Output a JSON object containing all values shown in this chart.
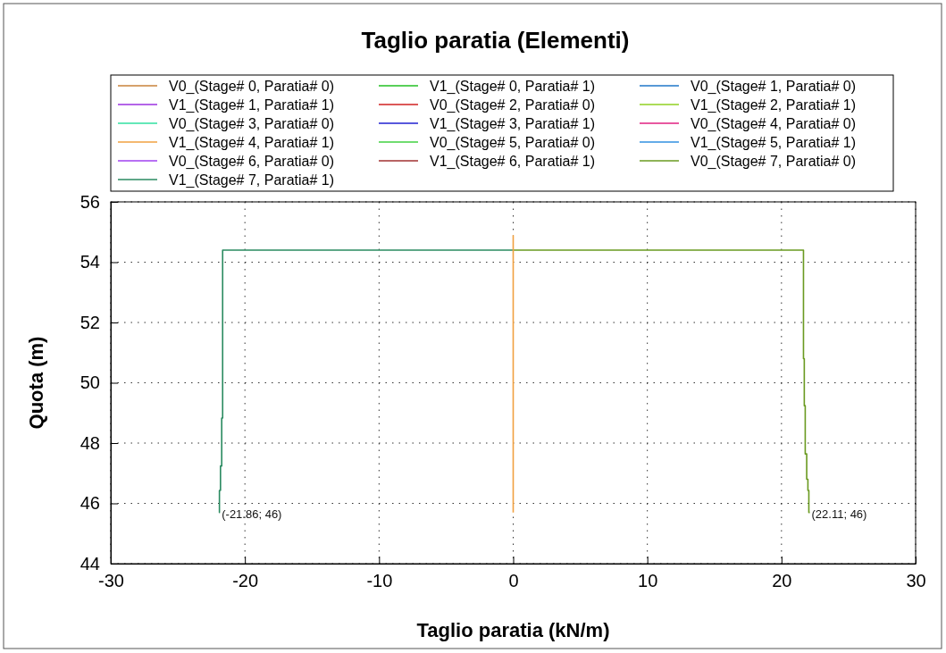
{
  "chart_data": {
    "type": "line",
    "title": "Taglio paratia (Elementi)",
    "xlabel": "Taglio paratia (kN/m)",
    "ylabel": "Quota (m)",
    "xlim": [
      -30,
      30
    ],
    "xticks": [
      -30,
      -20,
      -10,
      0,
      10,
      20,
      30
    ],
    "ylim": [
      44,
      56
    ],
    "yticks": [
      44,
      46,
      48,
      50,
      52,
      54,
      56
    ],
    "grid": true,
    "legend": "top",
    "line_style": "solid",
    "marker": "none",
    "series": [
      {
        "name": "V0_(Stage# 0, Paratia# 0)",
        "color": "#c8823a"
      },
      {
        "name": "V1_(Stage# 0, Paratia# 1)",
        "color": "#22c022"
      },
      {
        "name": "V0_(Stage# 1, Paratia# 0)",
        "color": "#1f77c8"
      },
      {
        "name": "V1_(Stage# 1, Paratia# 1)",
        "color": "#9b30e0"
      },
      {
        "name": "V0_(Stage# 2, Paratia# 0)",
        "color": "#d02020"
      },
      {
        "name": "V1_(Stage# 2, Paratia# 1)",
        "color": "#90d020"
      },
      {
        "name": "V0_(Stage# 3, Paratia# 0)",
        "color": "#30e0a0"
      },
      {
        "name": "V1_(Stage# 3, Paratia# 1)",
        "color": "#2020d0"
      },
      {
        "name": "V0_(Stage# 4, Paratia# 0)",
        "color": "#e02080"
      },
      {
        "name": "V1_(Stage# 4, Paratia# 1)",
        "color": "#f0a040",
        "x": [
          0,
          0
        ],
        "values": [
          45.7,
          54.9
        ]
      },
      {
        "name": "V0_(Stage# 5, Paratia# 0)",
        "color": "#40d040"
      },
      {
        "name": "V1_(Stage# 5, Paratia# 1)",
        "color": "#3090e0"
      },
      {
        "name": "V0_(Stage# 6, Paratia# 0)",
        "color": "#a040f0"
      },
      {
        "name": "V1_(Stage# 6, Paratia# 1)",
        "color": "#a03030"
      },
      {
        "name": "V0_(Stage# 7, Paratia# 0)",
        "color": "#6a9a20",
        "x": [
          0,
          21.64,
          21.64,
          21.7,
          21.7,
          21.77,
          21.77,
          21.88,
          21.88,
          21.97,
          21.97,
          22.04,
          22.04,
          22.11
        ],
        "values": [
          54.4,
          54.4,
          50.8,
          50.8,
          49.24,
          49.24,
          47.64,
          47.64,
          46.8,
          46.8,
          46.43,
          46.43,
          45.7,
          45.7
        ]
      },
      {
        "name": "V1_(Stage# 7, Paratia# 1)",
        "color": "#2a8a60",
        "x": [
          0,
          -21.66,
          -21.66,
          -21.73,
          -21.73,
          -21.82,
          -21.82,
          -21.9,
          -21.9,
          -21.86
        ],
        "values": [
          54.4,
          54.4,
          48.83,
          48.83,
          47.24,
          47.24,
          46.43,
          46.43,
          45.7,
          45.7
        ]
      }
    ],
    "annotations": [
      {
        "text": "(-21.86; 46)",
        "x": -21.86,
        "y": 46
      },
      {
        "text": "(22.11; 46)",
        "x": 22.11,
        "y": 46
      }
    ]
  }
}
